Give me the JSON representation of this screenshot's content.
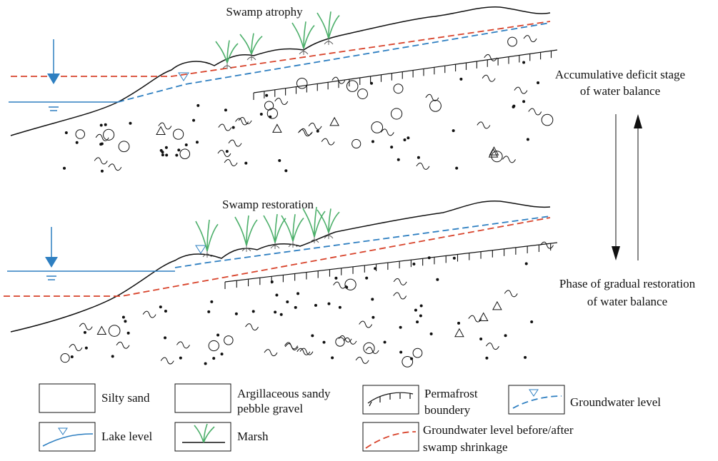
{
  "panels": [
    {
      "label": "Swamp atrophy"
    },
    {
      "label": "Swamp restoration"
    }
  ],
  "stages": [
    {
      "lines": [
        "Accumulative deficit stage",
        "of water balance"
      ]
    },
    {
      "lines": [
        "Phase of gradual restoration",
        "of water balance"
      ]
    }
  ],
  "legend": [
    {
      "lines": [
        "Silty sand"
      ]
    },
    {
      "lines": [
        "Argillaceous sandy",
        "pebble gravel"
      ]
    },
    {
      "lines": [
        "Permafrost",
        "boundery"
      ]
    },
    {
      "lines": [
        "Groundwater level"
      ]
    },
    {
      "lines": [
        "Lake level"
      ]
    },
    {
      "lines": [
        "Marsh"
      ]
    },
    {
      "lines": [
        "Groundwater level before/after",
        "swamp shrinkage"
      ]
    }
  ]
}
